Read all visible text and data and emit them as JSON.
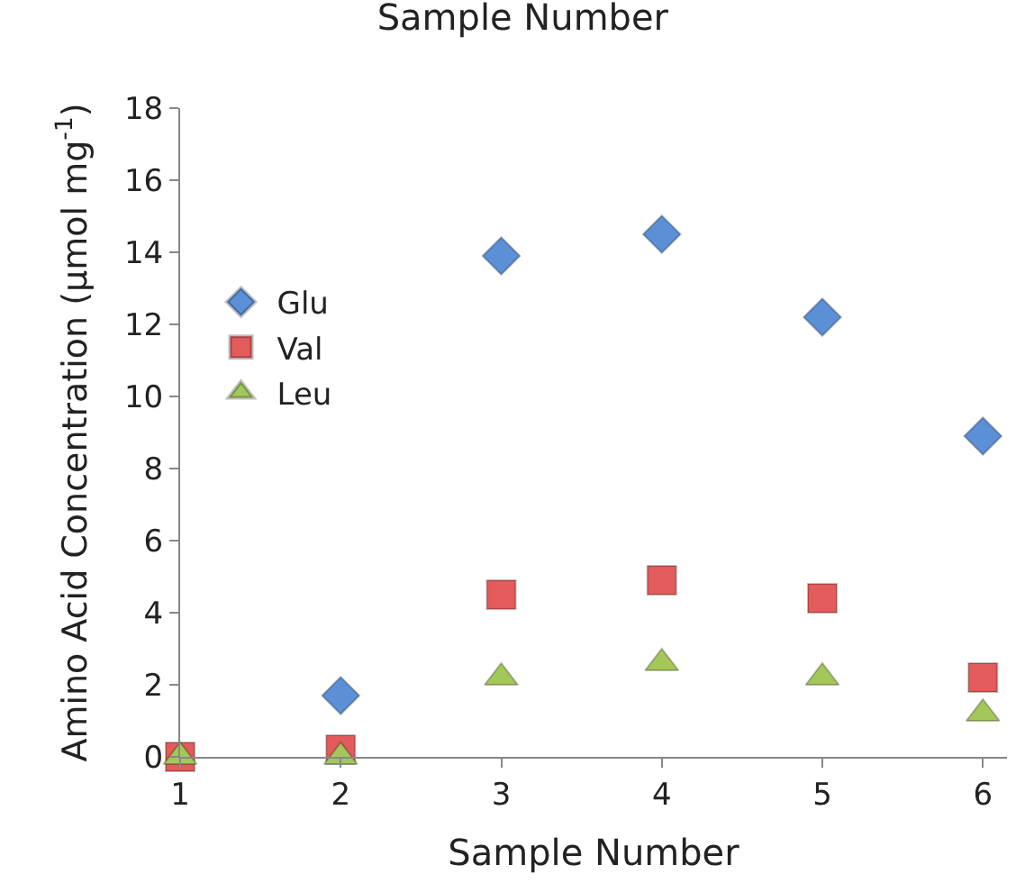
{
  "chart_data": {
    "type": "scatter",
    "title": "Sample Number",
    "xlabel": "Sample Number",
    "ylabel": "Amino Acid Concentration (µmol mg$^{-1}$)",
    "x": [
      1,
      2,
      3,
      4,
      5,
      6
    ],
    "series": [
      {
        "name": "Glu",
        "color": "#5b8fd6",
        "marker": "diamond",
        "values": [
          null,
          1.7,
          13.9,
          14.5,
          12.2,
          8.9
        ]
      },
      {
        "name": "Val",
        "color": "#e35b5b",
        "marker": "square",
        "values": [
          0,
          0.2,
          4.5,
          4.9,
          4.4,
          2.2
        ]
      },
      {
        "name": "Leu",
        "color": "#a4c75a",
        "marker": "triangle",
        "values": [
          0,
          0,
          2.2,
          2.6,
          2.2,
          1.2
        ]
      }
    ],
    "xlim": [
      1,
      6.15
    ],
    "xticks": [
      1,
      2,
      3,
      4,
      5,
      6
    ],
    "ylim": [
      0,
      18
    ],
    "yticks": [
      0,
      2,
      4,
      6,
      8,
      10,
      12,
      14,
      16,
      18
    ],
    "legend": "top left"
  }
}
